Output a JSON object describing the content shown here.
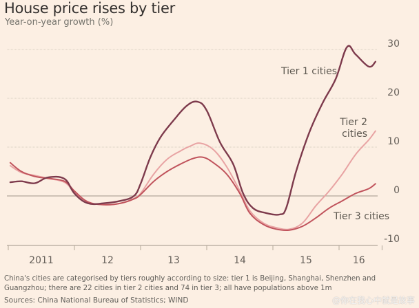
{
  "chart_data": {
    "type": "line",
    "title": "House price rises by tier",
    "subtitle": "Year-on-year growth (%)",
    "xlabel": "",
    "ylabel": "",
    "ylim": [
      -10,
      32
    ],
    "xlim": [
      2011,
      2017.3
    ],
    "yticks": [
      30,
      20,
      10,
      0,
      -10
    ],
    "xticks": [
      {
        "value": 2011,
        "label": ""
      },
      {
        "value": 2012,
        "label": ""
      },
      {
        "value": 2013,
        "label": ""
      },
      {
        "value": 2014,
        "label": ""
      },
      {
        "value": 2015,
        "label": ""
      },
      {
        "value": 2016,
        "label": ""
      },
      {
        "value": 2016.65,
        "label": ""
      }
    ],
    "xtick_labels": [
      {
        "value": 2011.5,
        "label": "2011"
      },
      {
        "value": 2012.5,
        "label": "12"
      },
      {
        "value": 2013.5,
        "label": "13"
      },
      {
        "value": 2014.5,
        "label": "14"
      },
      {
        "value": 2015.5,
        "label": "15"
      },
      {
        "value": 2016.3,
        "label": "16"
      }
    ],
    "grid": true,
    "series": [
      {
        "name": "Tier 1 cities",
        "color": "#7d3a4c",
        "x": [
          2011.03,
          2011.2,
          2011.4,
          2011.6,
          2011.85,
          2012.0,
          2012.2,
          2012.45,
          2012.7,
          2012.9,
          2013.0,
          2013.15,
          2013.3,
          2013.5,
          2013.7,
          2013.86,
          2014.0,
          2014.2,
          2014.4,
          2014.55,
          2014.7,
          2014.9,
          2015.1,
          2015.2,
          2015.35,
          2015.55,
          2015.75,
          2015.95,
          2016.12,
          2016.25,
          2016.45,
          2016.55
        ],
        "values": [
          2.8,
          3.0,
          2.6,
          3.8,
          3.5,
          0.5,
          -1.5,
          -1.5,
          -1.0,
          0.0,
          2.5,
          8.0,
          12.0,
          15.5,
          18.5,
          19.3,
          17.5,
          11.0,
          6.5,
          0.5,
          -2.5,
          -3.5,
          -3.8,
          -2.5,
          5.0,
          13.0,
          19.0,
          24.0,
          30.5,
          29.0,
          26.5,
          27.5
        ]
      },
      {
        "name": "Tier 2 cities",
        "color": "#e8a3a3",
        "x": [
          2011.03,
          2011.2,
          2011.4,
          2011.6,
          2011.85,
          2012.0,
          2012.2,
          2012.45,
          2012.7,
          2012.9,
          2013.0,
          2013.2,
          2013.4,
          2013.6,
          2013.75,
          2013.9,
          2014.1,
          2014.3,
          2014.5,
          2014.65,
          2014.85,
          2015.05,
          2015.25,
          2015.45,
          2015.65,
          2015.85,
          2016.05,
          2016.25,
          2016.45,
          2016.55
        ],
        "values": [
          6.2,
          4.8,
          4.2,
          3.6,
          2.8,
          0.8,
          -1.2,
          -1.8,
          -1.5,
          -0.5,
          0.5,
          4.5,
          7.5,
          9.2,
          10.2,
          10.8,
          9.5,
          6.0,
          1.0,
          -3.0,
          -5.5,
          -6.5,
          -6.8,
          -5.5,
          -2.0,
          1.0,
          4.5,
          8.5,
          11.5,
          13.3
        ]
      },
      {
        "name": "Tier 3 cities",
        "color": "#c0535c",
        "x": [
          2011.03,
          2011.2,
          2011.4,
          2011.6,
          2011.85,
          2012.0,
          2012.2,
          2012.45,
          2012.7,
          2012.9,
          2013.0,
          2013.2,
          2013.4,
          2013.6,
          2013.8,
          2013.95,
          2014.1,
          2014.3,
          2014.5,
          2014.65,
          2014.85,
          2015.05,
          2015.25,
          2015.45,
          2015.65,
          2015.85,
          2016.05,
          2016.25,
          2016.45,
          2016.55
        ],
        "values": [
          6.8,
          5.0,
          4.0,
          3.6,
          3.0,
          1.0,
          -1.2,
          -1.8,
          -1.5,
          -0.6,
          0.3,
          3.0,
          5.0,
          6.5,
          7.7,
          7.9,
          6.8,
          4.5,
          0.5,
          -3.5,
          -5.8,
          -6.8,
          -7.0,
          -6.2,
          -4.5,
          -2.5,
          -1.0,
          0.5,
          1.5,
          2.5
        ]
      }
    ],
    "annotations": [
      {
        "text": "Tier 1 cities",
        "series": "Tier 1 cities"
      },
      {
        "text": "Tier 2",
        "series": "Tier 2 cities"
      },
      {
        "text": "cities",
        "series": "Tier 2 cities"
      },
      {
        "text": "Tier 3 cities",
        "series": "Tier 3 cities"
      }
    ]
  },
  "note": "China's cities are categorised by tiers roughly according to size: tier 1 is Beijing, Shanghai, Shenzhen and Guangzhou; there are 22 cities in tier 2 cities and 74 in tier 3; all have populations above 1m",
  "source": "Sources: China National Bureau of Statistics; WIND",
  "watermark": "@你在我心中就是故事",
  "colors": {
    "background": "#fcefe3",
    "grid": "#d9cfc2",
    "zero_line": "#b3a89a",
    "axis_text": "#66605a"
  }
}
